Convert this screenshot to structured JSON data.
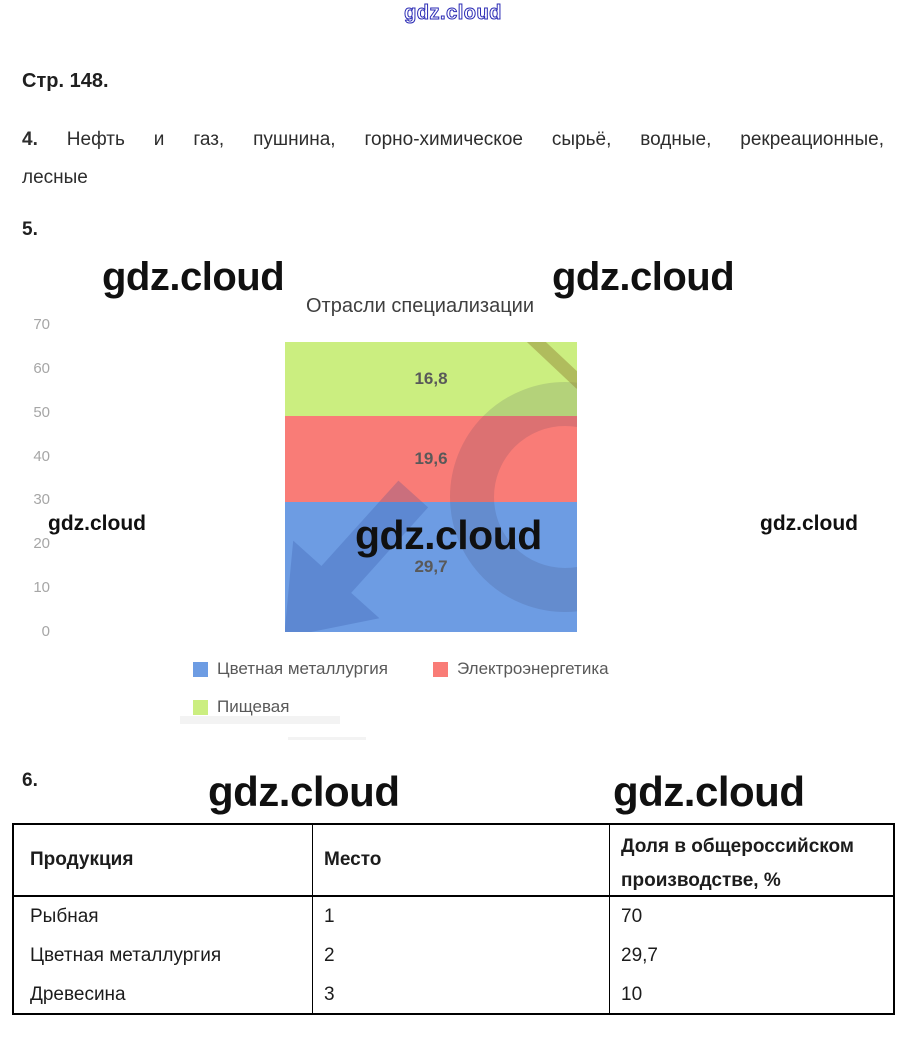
{
  "watermark": {
    "text": "gdz.cloud"
  },
  "doc": {
    "page_heading": "Стр. 148.",
    "item4": {
      "number": "4.",
      "line1": "Нефть и газ, пушнина, горно-химическое сырьё, водные, рекреационные,",
      "line2": "лесные"
    },
    "item5_number": "5.",
    "item6_number": "6."
  },
  "chart_data": {
    "type": "bar",
    "stacked": true,
    "title": "Отрасли специализации",
    "categories": [
      "Отрасли специализации"
    ],
    "series": [
      {
        "name": "Цветная металлургия",
        "values": [
          29.7
        ],
        "label": "29,7",
        "color": "#6d9ce3"
      },
      {
        "name": "Электроэнергетика",
        "values": [
          19.6
        ],
        "label": "19,6",
        "color": "#f97c77"
      },
      {
        "name": "Пищевая",
        "values": [
          16.8
        ],
        "label": "16,8",
        "color": "#cbee80"
      }
    ],
    "ylim": [
      0,
      70
    ],
    "yticks": [
      70,
      60,
      50,
      40,
      30,
      20,
      10,
      0
    ],
    "grid": false,
    "legend_position": "bottom",
    "label_color": "#595959",
    "axis_label_color": "#a6a6a6"
  },
  "table": {
    "headers": [
      "Продукция",
      "Место",
      "Доля в общероссийском",
      "производстве, %"
    ],
    "header_col3_full": "Доля в общероссийском производстве, %",
    "rows": [
      [
        "Рыбная",
        "1",
        "70"
      ],
      [
        "Цветная металлургия",
        "2",
        "29,7"
      ],
      [
        "Древесина",
        "3",
        "10"
      ]
    ]
  }
}
